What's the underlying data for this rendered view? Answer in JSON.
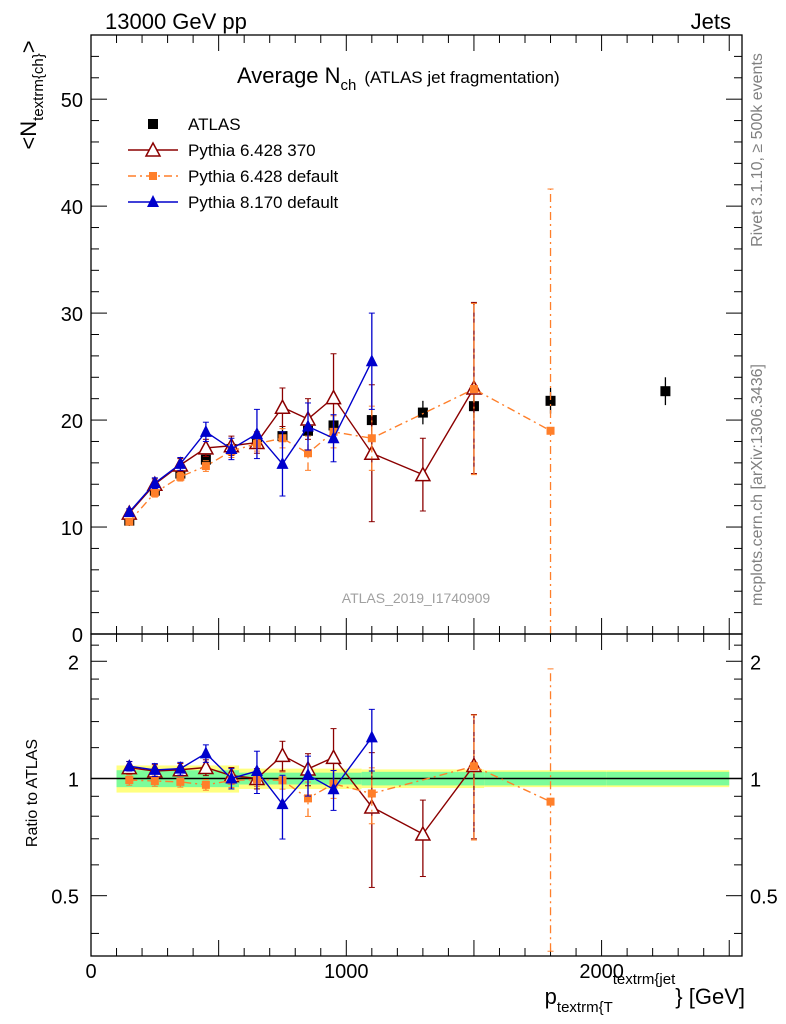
{
  "header": {
    "left": "13000 GeV pp",
    "right": "Jets"
  },
  "side_text": {
    "rivet": "Rivet 3.1.10, ≥ 500k events",
    "mcplots": "mcplots.cern.ch [arXiv:1306.3436]"
  },
  "chart_data": {
    "type": "scatter",
    "title": "Average N",
    "title_sub": "ch",
    "title_suffix": "(ATLAS jet fragmentation)",
    "watermark": "ATLAS_2019_I1740909",
    "ylabel_main": "<N",
    "ylabel_main_sub": "textrm{ch}",
    "ylabel_main_end": ">",
    "ylabel_ratio": "Ratio to ATLAS",
    "xlabel_p": "p",
    "xlabel_sub": "textrm{T",
    "xlabel_sup": "textrm{jet",
    "xlabel_end": "} [GeV]",
    "xlim": [
      0,
      2550
    ],
    "ylim_main": [
      0,
      56
    ],
    "ylim_ratio": [
      0.35,
      2.35
    ],
    "ratio_log_scale": true,
    "x_ticks": [
      {
        "v": 0,
        "label": "0"
      },
      {
        "v": 1000,
        "label": "1000"
      },
      {
        "v": 2000,
        "label": "2000"
      }
    ],
    "y_ticks_main": [
      {
        "v": 0,
        "label": "0"
      },
      {
        "v": 10,
        "label": "10"
      },
      {
        "v": 20,
        "label": "20"
      },
      {
        "v": 30,
        "label": "30"
      },
      {
        "v": 40,
        "label": "40"
      },
      {
        "v": 50,
        "label": "50"
      }
    ],
    "y_ticks_ratio": [
      {
        "v": 0.5,
        "label": "0.5"
      },
      {
        "v": 1,
        "label": "1"
      },
      {
        "v": 2,
        "label": "2"
      }
    ],
    "legend_position": "top-left",
    "series": [
      {
        "name": "ATLAS",
        "color": "#000000",
        "marker": "square-filled",
        "line": "none",
        "x": [
          150,
          250,
          350,
          450,
          550,
          650,
          750,
          850,
          950,
          1100,
          1300,
          1500,
          1800,
          2250
        ],
        "y": [
          10.6,
          13.4,
          15.0,
          16.3,
          17.3,
          17.9,
          18.5,
          19.0,
          19.5,
          20.0,
          20.7,
          21.3,
          21.8,
          22.7
        ],
        "yerr": [
          0.5,
          0.6,
          0.7,
          0.7,
          0.8,
          0.8,
          0.9,
          0.9,
          1.0,
          1.0,
          1.1,
          1.1,
          1.2,
          1.3
        ]
      },
      {
        "name": "Pythia 6.428 370",
        "color": "#8b0000",
        "marker": "triangle-open",
        "line": "solid",
        "x": [
          150,
          250,
          350,
          450,
          550,
          650,
          750,
          850,
          950,
          1100,
          1300,
          1500
        ],
        "y": [
          11.3,
          14.0,
          15.8,
          17.4,
          17.6,
          17.9,
          21.2,
          20.1,
          22.1,
          16.9,
          14.9,
          23.0
        ],
        "yerr": [
          0.4,
          0.5,
          0.6,
          0.8,
          0.9,
          1.0,
          1.8,
          1.9,
          4.1,
          6.4,
          3.4,
          8.0
        ],
        "ratio": [
          1.066,
          1.045,
          1.053,
          1.067,
          1.017,
          1.0,
          1.146,
          1.058,
          1.133,
          0.845,
          0.72,
          1.08
        ],
        "ratio_err": [
          0.04,
          0.04,
          0.04,
          0.05,
          0.05,
          0.06,
          0.1,
          0.1,
          0.21,
          0.32,
          0.16,
          0.38
        ]
      },
      {
        "name": "Pythia 6.428 default",
        "color": "#ff7f2a",
        "marker": "square-small",
        "line": "dashdot",
        "x": [
          150,
          250,
          350,
          450,
          550,
          650,
          750,
          850,
          950,
          1100,
          1500,
          1800
        ],
        "y": [
          10.5,
          13.2,
          14.7,
          15.7,
          17.1,
          17.8,
          18.3,
          16.9,
          18.9,
          18.3,
          22.9,
          19.0
        ],
        "yerr": [
          0.3,
          0.4,
          0.4,
          0.5,
          0.6,
          0.7,
          0.9,
          1.6,
          1.5,
          3.0,
          8.0,
          22.6
        ],
        "ratio": [
          0.991,
          0.985,
          0.98,
          0.963,
          0.988,
          0.994,
          0.989,
          0.889,
          0.969,
          0.915,
          1.075,
          0.872
        ],
        "ratio_err": [
          0.03,
          0.03,
          0.03,
          0.03,
          0.04,
          0.04,
          0.05,
          0.09,
          0.08,
          0.15,
          0.38,
          1.04
        ]
      },
      {
        "name": "Pythia 8.170 default",
        "color": "#0000cc",
        "marker": "triangle-filled",
        "line": "solid",
        "x": [
          150,
          250,
          350,
          450,
          550,
          650,
          750,
          850,
          950,
          1100
        ],
        "y": [
          11.4,
          14.1,
          15.9,
          18.9,
          17.3,
          18.7,
          15.9,
          19.4,
          18.3,
          25.5
        ],
        "yerr": [
          0.3,
          0.5,
          0.6,
          0.9,
          1.0,
          2.3,
          3.0,
          2.2,
          2.2,
          4.5
        ],
        "ratio": [
          1.075,
          1.052,
          1.06,
          1.16,
          1.0,
          1.045,
          0.859,
          1.021,
          0.938,
          1.275
        ],
        "ratio_err": [
          0.03,
          0.04,
          0.04,
          0.06,
          0.06,
          0.13,
          0.16,
          0.12,
          0.11,
          0.23
        ]
      }
    ],
    "ratio_band": {
      "x": [
        100,
        2500
      ],
      "inner_halfwidth": [
        0.05,
        0.035,
        0.04,
        0.04,
        0.04
      ],
      "outer_halfwidth": [
        0.08,
        0.06,
        0.055,
        0.05,
        0.05
      ],
      "inner_color": "#7cfc9a",
      "outer_color": "#ffff80"
    }
  }
}
